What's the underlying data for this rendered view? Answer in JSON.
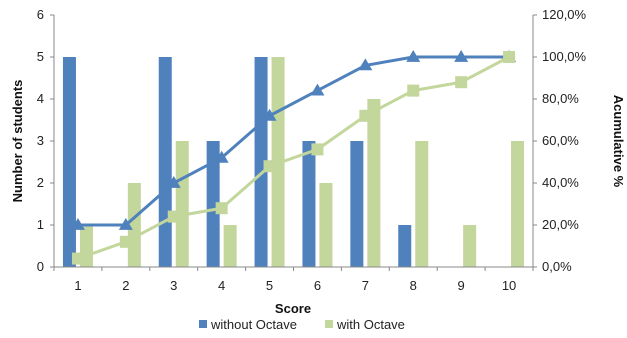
{
  "chart_data": {
    "type": "bar",
    "categories": [
      "1",
      "2",
      "3",
      "4",
      "5",
      "6",
      "7",
      "8",
      "9",
      "10"
    ],
    "series": [
      {
        "name": "without Octave",
        "type": "bar",
        "axis": "left",
        "color": "#4F81BD",
        "values": [
          5,
          0,
          5,
          3,
          5,
          3,
          3,
          1,
          0,
          0
        ]
      },
      {
        "name": "with Octave",
        "type": "bar",
        "axis": "left",
        "color": "#C3D69B",
        "values": [
          1,
          2,
          3,
          1,
          5,
          2,
          4,
          3,
          1,
          3
        ]
      },
      {
        "type": "line",
        "axis": "right",
        "color": "#4F81BD",
        "marker": "triangle",
        "values": [
          20,
          20,
          40,
          52,
          72,
          84,
          96,
          100,
          100,
          100
        ]
      },
      {
        "type": "line",
        "axis": "right",
        "color": "#C3D69B",
        "marker": "square",
        "values": [
          4,
          12,
          24,
          28,
          48,
          56,
          72,
          84,
          88,
          100
        ]
      }
    ],
    "xlabel": "Score",
    "ylabel": "Number of students",
    "y2label": "Acumulative %",
    "ylim": [
      0,
      6
    ],
    "y2lim": [
      0,
      120
    ],
    "yticks": [
      "0",
      "1",
      "2",
      "3",
      "4",
      "5",
      "6"
    ],
    "y2ticks": [
      "0,0%",
      "20,0%",
      "40,0%",
      "60,0%",
      "80,0%",
      "100,0%",
      "120,0%"
    ],
    "grid": false,
    "legend": "bottom"
  }
}
